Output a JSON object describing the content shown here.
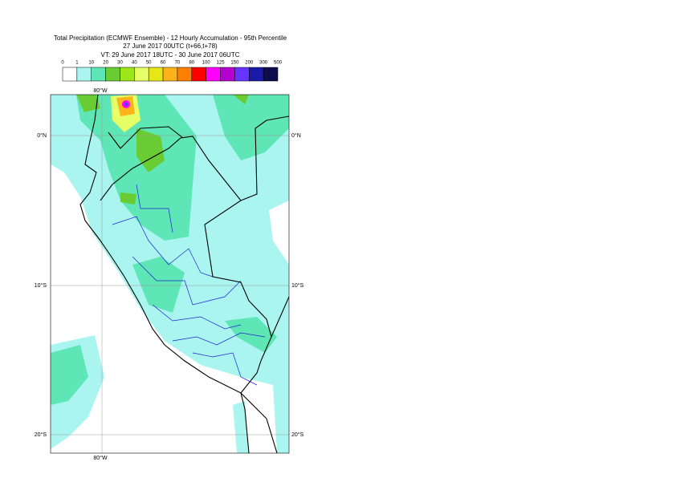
{
  "header": {
    "title": "Total Precipitation (ECMWF Ensemble) - 12 Hourly Accumulation - 95th Percentile",
    "base_time": "27 June 2017 00UTC (t+66,t+78)",
    "valid_time": "VT: 29 June 2017 18UTC - 30 June 2017 06UTC"
  },
  "legend": {
    "ticks": [
      0,
      1,
      10,
      20,
      30,
      40,
      50,
      60,
      70,
      80,
      100,
      125,
      150,
      200,
      300,
      500
    ],
    "colors": [
      "#ffffff",
      "#aaf5f0",
      "#5ee6b6",
      "#6acc33",
      "#9ce61a",
      "#e6ff66",
      "#e6e619",
      "#ffb31a",
      "#ff8000",
      "#ff0000",
      "#ff00ff",
      "#b300cc",
      "#6633ff",
      "#1a1aa6",
      "#0d0d4d"
    ]
  },
  "map": {
    "lat_labels": [
      "0°N",
      "10°S",
      "20°S"
    ],
    "lon_label": "80°W"
  }
}
